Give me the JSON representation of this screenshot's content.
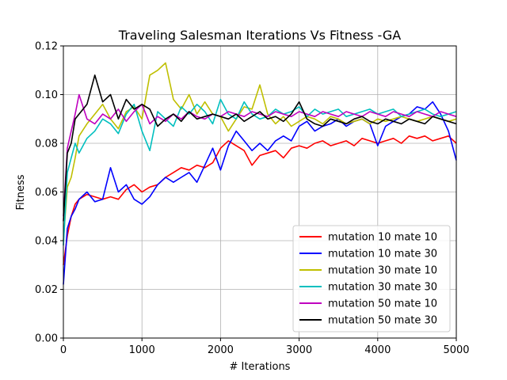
{
  "chart_data": {
    "type": "line",
    "title": "Traveling Salesman Iterations Vs Fitness -GA",
    "xlabel": "# Iterations",
    "ylabel": "Fitness",
    "xlim": [
      0,
      5000
    ],
    "ylim": [
      0.0,
      0.12
    ],
    "xticks": [
      0,
      1000,
      2000,
      3000,
      4000,
      5000
    ],
    "xtick_labels": [
      "0",
      "1000",
      "2000",
      "3000",
      "4000",
      "5000"
    ],
    "yticks": [
      0.0,
      0.02,
      0.04,
      0.06,
      0.08,
      0.1,
      0.12
    ],
    "ytick_labels": [
      "0.00",
      "0.02",
      "0.04",
      "0.06",
      "0.08",
      "0.10",
      "0.12"
    ],
    "grid": true,
    "legend_position": "lower-right",
    "x": [
      0,
      50,
      100,
      150,
      200,
      300,
      400,
      500,
      600,
      700,
      800,
      900,
      1000,
      1100,
      1200,
      1300,
      1400,
      1500,
      1600,
      1700,
      1800,
      1900,
      2000,
      2100,
      2200,
      2300,
      2400,
      2500,
      2600,
      2700,
      2800,
      2900,
      3000,
      3100,
      3200,
      3300,
      3400,
      3500,
      3600,
      3700,
      3800,
      3900,
      4000,
      4100,
      4200,
      4300,
      4400,
      4500,
      4600,
      4700,
      4800,
      4900,
      5000
    ],
    "series": [
      {
        "name": "mutation 10 mate 10",
        "color": "#ff0000",
        "values": [
          0.03,
          0.042,
          0.05,
          0.055,
          0.057,
          0.059,
          0.058,
          0.057,
          0.058,
          0.057,
          0.061,
          0.063,
          0.06,
          0.062,
          0.063,
          0.066,
          0.068,
          0.07,
          0.069,
          0.071,
          0.07,
          0.072,
          0.078,
          0.081,
          0.079,
          0.077,
          0.071,
          0.075,
          0.076,
          0.077,
          0.074,
          0.078,
          0.079,
          0.078,
          0.08,
          0.081,
          0.079,
          0.08,
          0.081,
          0.079,
          0.082,
          0.081,
          0.08,
          0.081,
          0.082,
          0.08,
          0.083,
          0.082,
          0.083,
          0.081,
          0.082,
          0.083,
          0.08
        ]
      },
      {
        "name": "mutation 10 mate 30",
        "color": "#0000ff",
        "values": [
          0.022,
          0.045,
          0.05,
          0.053,
          0.057,
          0.06,
          0.056,
          0.057,
          0.07,
          0.06,
          0.063,
          0.057,
          0.055,
          0.058,
          0.063,
          0.066,
          0.064,
          0.066,
          0.068,
          0.064,
          0.071,
          0.078,
          0.069,
          0.079,
          0.085,
          0.081,
          0.077,
          0.08,
          0.077,
          0.081,
          0.083,
          0.081,
          0.087,
          0.089,
          0.085,
          0.087,
          0.088,
          0.09,
          0.087,
          0.089,
          0.09,
          0.088,
          0.079,
          0.087,
          0.089,
          0.091,
          0.092,
          0.095,
          0.094,
          0.097,
          0.092,
          0.085,
          0.073
        ]
      },
      {
        "name": "mutation 30 mate 10",
        "color": "#bfbf00",
        "values": [
          0.04,
          0.062,
          0.066,
          0.074,
          0.083,
          0.088,
          0.092,
          0.096,
          0.09,
          0.086,
          0.093,
          0.095,
          0.09,
          0.108,
          0.11,
          0.113,
          0.098,
          0.094,
          0.1,
          0.092,
          0.097,
          0.092,
          0.091,
          0.085,
          0.09,
          0.095,
          0.094,
          0.104,
          0.092,
          0.088,
          0.091,
          0.087,
          0.089,
          0.091,
          0.09,
          0.088,
          0.091,
          0.09,
          0.088,
          0.089,
          0.09,
          0.088,
          0.09,
          0.089,
          0.09,
          0.091,
          0.09,
          0.089,
          0.09,
          0.091,
          0.09,
          0.089,
          0.09
        ]
      },
      {
        "name": "mutation 30 mate 30",
        "color": "#00bfbf",
        "values": [
          0.038,
          0.068,
          0.074,
          0.08,
          0.076,
          0.082,
          0.085,
          0.09,
          0.088,
          0.084,
          0.092,
          0.096,
          0.085,
          0.077,
          0.093,
          0.09,
          0.087,
          0.095,
          0.092,
          0.096,
          0.093,
          0.088,
          0.098,
          0.092,
          0.09,
          0.097,
          0.092,
          0.09,
          0.091,
          0.094,
          0.092,
          0.093,
          0.095,
          0.091,
          0.094,
          0.092,
          0.093,
          0.094,
          0.091,
          0.092,
          0.093,
          0.094,
          0.092,
          0.093,
          0.094,
          0.091,
          0.092,
          0.093,
          0.094,
          0.092,
          0.091,
          0.092,
          0.093
        ]
      },
      {
        "name": "mutation 50 mate 10",
        "color": "#bf00bf",
        "values": [
          0.05,
          0.078,
          0.085,
          0.092,
          0.1,
          0.09,
          0.088,
          0.092,
          0.09,
          0.094,
          0.089,
          0.093,
          0.096,
          0.088,
          0.091,
          0.089,
          0.092,
          0.09,
          0.093,
          0.091,
          0.09,
          0.092,
          0.091,
          0.093,
          0.092,
          0.091,
          0.093,
          0.092,
          0.091,
          0.093,
          0.092,
          0.091,
          0.093,
          0.092,
          0.091,
          0.093,
          0.092,
          0.091,
          0.093,
          0.092,
          0.091,
          0.093,
          0.092,
          0.091,
          0.093,
          0.092,
          0.091,
          0.093,
          0.092,
          0.091,
          0.093,
          0.092,
          0.091
        ]
      },
      {
        "name": "mutation 50 mate 30",
        "color": "#000000",
        "values": [
          0.048,
          0.076,
          0.08,
          0.09,
          0.092,
          0.096,
          0.108,
          0.097,
          0.1,
          0.09,
          0.098,
          0.094,
          0.096,
          0.094,
          0.087,
          0.09,
          0.092,
          0.089,
          0.093,
          0.09,
          0.091,
          0.092,
          0.091,
          0.09,
          0.092,
          0.089,
          0.091,
          0.093,
          0.09,
          0.091,
          0.089,
          0.092,
          0.097,
          0.09,
          0.088,
          0.087,
          0.09,
          0.089,
          0.088,
          0.09,
          0.091,
          0.089,
          0.088,
          0.09,
          0.089,
          0.088,
          0.09,
          0.089,
          0.088,
          0.091,
          0.09,
          0.089,
          0.088
        ]
      }
    ]
  }
}
